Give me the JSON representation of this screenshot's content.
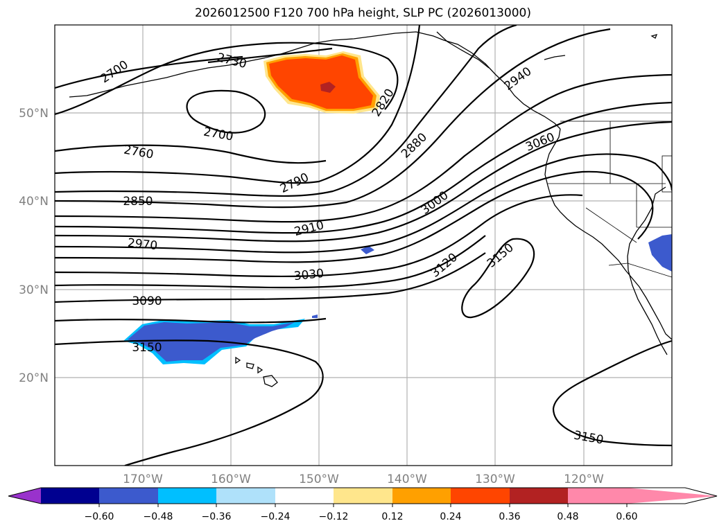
{
  "title": "2026012500 F120 700 hPa height, SLP PC (2026013000)",
  "latitude_labels": [
    "50°N",
    "40°N",
    "30°N",
    "20°N"
  ],
  "longitude_labels": [
    "170°W",
    "160°W",
    "150°W",
    "140°W",
    "130°W",
    "120°W"
  ],
  "contour_labels": [
    "2700",
    "2730",
    "2700",
    "2760",
    "2790",
    "2820",
    "2850",
    "2880",
    "2910",
    "2940",
    "2970",
    "3000",
    "3030",
    "3060",
    "3090",
    "3120",
    "3150",
    "3150",
    "3150"
  ],
  "colorbar": {
    "ticks": [
      "−0.60",
      "−0.48",
      "−0.36",
      "−0.24",
      "−0.12",
      "0.12",
      "0.24",
      "0.36",
      "0.48",
      "0.60"
    ],
    "colors": [
      "#9932cc",
      "#000090",
      "#3c5acd",
      "#00bfff",
      "#afe1fa",
      "#ffffff",
      "#ffe68c",
      "#ffa000",
      "#ff4500",
      "#b22222",
      "#ff88aa"
    ]
  },
  "shading_colors": {
    "positive_anomaly": "#ff4500",
    "positive_core": "#b22222",
    "positive_edge": "#ffa000",
    "negative_anomaly": "#3c5acd",
    "negative_edge": "#00bfff"
  }
}
